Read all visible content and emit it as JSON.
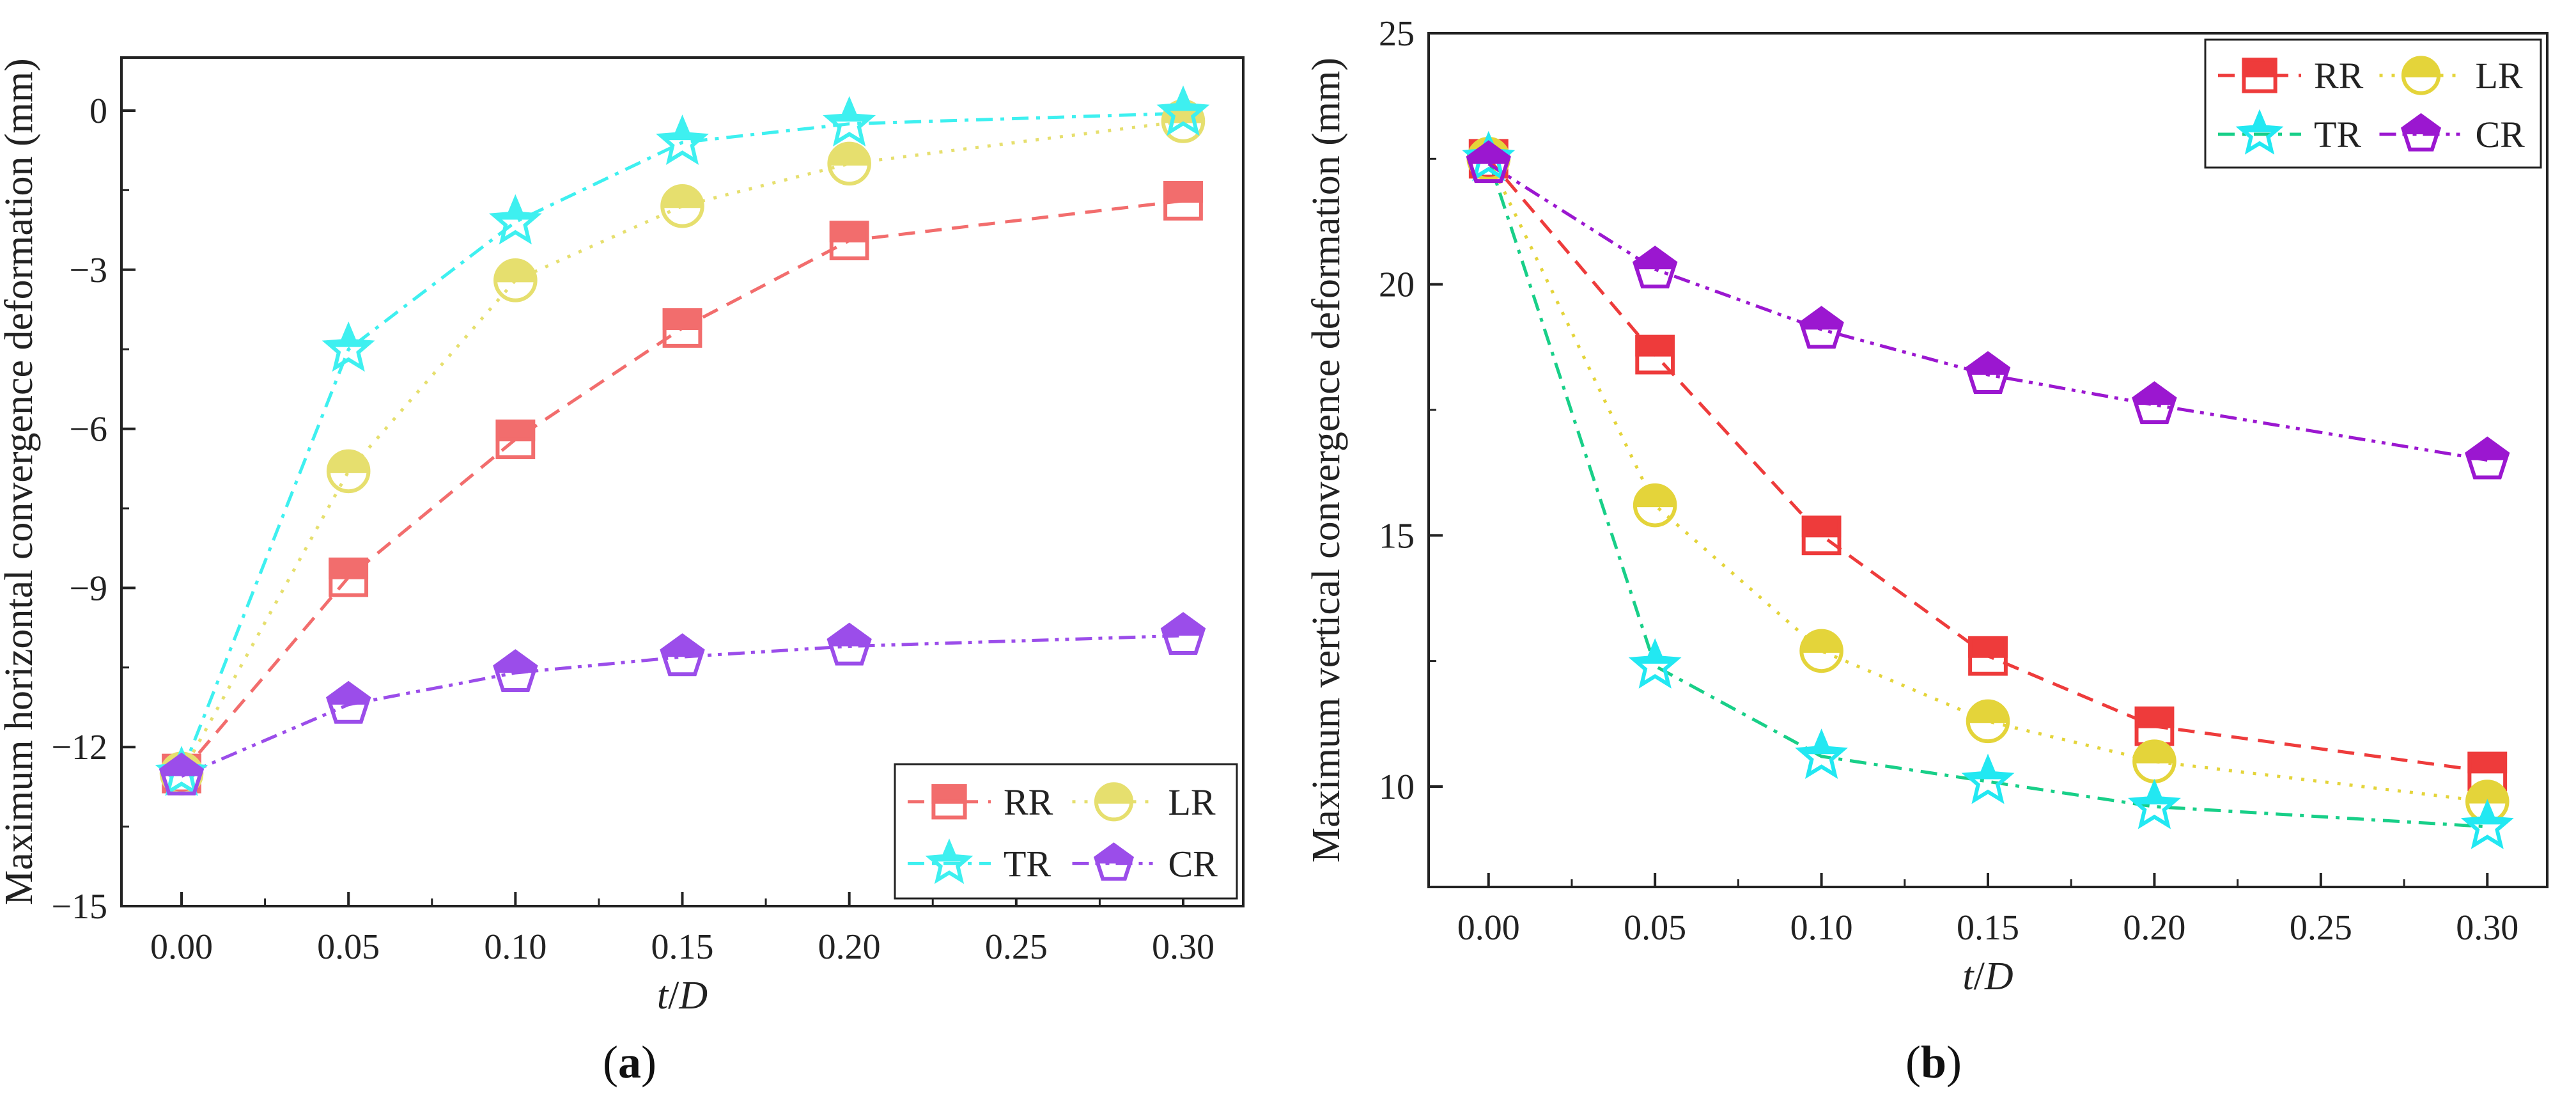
{
  "colors": {
    "a": {
      "RR": "#f26d6d",
      "LR": "#e6df6e",
      "TR": "#3ef0f0",
      "CR": "#9b4dea"
    },
    "b": {
      "RR": "#ee3b3b",
      "LR": "#e4d43a",
      "TR": "#18cf88",
      "CR": "#9b17d0"
    },
    "markers_b": {
      "TR": "#22e8f2"
    }
  },
  "chart_data": [
    {
      "type": "line",
      "panel_label": "a",
      "title": "",
      "xlabel": "t/D",
      "xlabel_parts": [
        "t",
        "/",
        "D"
      ],
      "ylabel": "Maximum horizontal convergence deformation (mm)",
      "xlim": [
        -0.018,
        0.318
      ],
      "ylim": [
        -15,
        1
      ],
      "xticks": [
        0.0,
        0.05,
        0.1,
        0.15,
        0.2,
        0.25,
        0.3
      ],
      "xtick_labels": [
        "0.00",
        "0.05",
        "0.10",
        "0.15",
        "0.20",
        "0.25",
        "0.30"
      ],
      "yticks": [
        -15,
        -12,
        -9,
        -6,
        -3,
        0
      ],
      "ytick_labels": [
        "−15",
        "−12",
        "−9",
        "−6",
        "−3",
        "0"
      ],
      "legend_position": "bottom-right",
      "x": [
        0.0,
        0.05,
        0.1,
        0.15,
        0.2,
        0.3
      ],
      "series": [
        {
          "name": "RR",
          "marker": "square",
          "dash": "dashed",
          "values": [
            -12.5,
            -8.8,
            -6.2,
            -4.1,
            -2.45,
            -1.7
          ]
        },
        {
          "name": "LR",
          "marker": "circle",
          "dash": "dotted",
          "values": [
            -12.5,
            -6.8,
            -3.2,
            -1.8,
            -1.0,
            -0.2
          ]
        },
        {
          "name": "TR",
          "marker": "star",
          "dash": "dashdot",
          "values": [
            -12.5,
            -4.5,
            -2.1,
            -0.6,
            -0.25,
            -0.05
          ]
        },
        {
          "name": "CR",
          "marker": "pentagon",
          "dash": "dashdotdot",
          "values": [
            -12.55,
            -11.2,
            -10.6,
            -10.3,
            -10.1,
            -9.9
          ]
        }
      ]
    },
    {
      "type": "line",
      "panel_label": "b",
      "title": "",
      "xlabel": "t/D",
      "xlabel_parts": [
        "t",
        "/",
        "D"
      ],
      "ylabel": "Maximum vertical convergence deformation (mm)",
      "xlim": [
        -0.018,
        0.318
      ],
      "ylim": [
        8,
        25
      ],
      "xticks": [
        0.0,
        0.05,
        0.1,
        0.15,
        0.2,
        0.25,
        0.3
      ],
      "xtick_labels": [
        "0.00",
        "0.05",
        "0.10",
        "0.15",
        "0.20",
        "0.25",
        "0.30"
      ],
      "yticks": [
        10,
        15,
        20,
        25
      ],
      "ytick_labels": [
        "10",
        "15",
        "20",
        "25"
      ],
      "legend_position": "top-right",
      "x": [
        0.0,
        0.05,
        0.1,
        0.15,
        0.2,
        0.3
      ],
      "series": [
        {
          "name": "RR",
          "marker": "square",
          "dash": "dashed",
          "values": [
            22.5,
            18.6,
            15.0,
            12.6,
            11.2,
            10.3
          ]
        },
        {
          "name": "LR",
          "marker": "circle",
          "dash": "dotted",
          "values": [
            22.5,
            15.6,
            12.7,
            11.3,
            10.5,
            9.7
          ]
        },
        {
          "name": "TR",
          "marker": "star",
          "dash": "dashdot",
          "values": [
            22.5,
            12.4,
            10.6,
            10.1,
            9.6,
            9.2
          ]
        },
        {
          "name": "CR",
          "marker": "pentagon",
          "dash": "dashdotdot",
          "values": [
            22.4,
            20.3,
            19.1,
            18.2,
            17.6,
            16.5
          ]
        }
      ]
    }
  ],
  "captions": [
    {
      "open": "(",
      "letter": "a",
      "close": ")"
    },
    {
      "open": "(",
      "letter": "b",
      "close": ")"
    }
  ]
}
